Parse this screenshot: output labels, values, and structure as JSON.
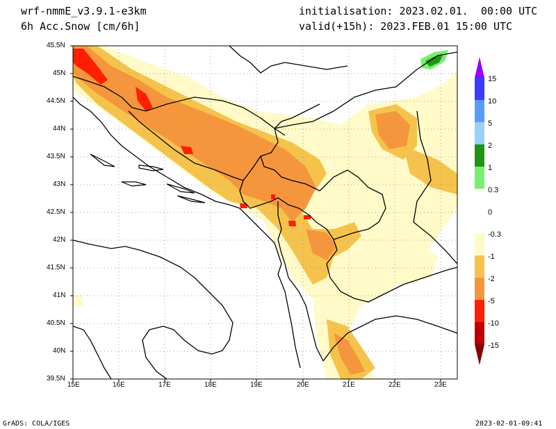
{
  "header": {
    "model": "wrf-nmmE_v3.9.1-e3km",
    "variable": "6h Acc.Snow [cm/6h]",
    "init": "initialisation: 2023.02.01.  00:00 UTC",
    "valid": "valid(+15h): 2023.FEB.01 15:00 UTC"
  },
  "footer": {
    "credit": "GrADS: COLA/IGES",
    "timestamp": "2023-02-01-09:41"
  },
  "axes": {
    "lon_labels": [
      "15E",
      "16E",
      "17E",
      "18E",
      "19E",
      "20E",
      "21E",
      "22E",
      "23E"
    ],
    "lat_labels": [
      "45.5N",
      "45N",
      "44.5N",
      "44N",
      "43.5N",
      "43N",
      "42.5N",
      "42N",
      "41.5N",
      "41N",
      "40.5N",
      "40N",
      "39.5N"
    ]
  },
  "legend": {
    "labels": [
      "15",
      "10",
      "5",
      "2",
      "1",
      "0.3",
      "0",
      "-0.3",
      "-1",
      "-2",
      "-5",
      "-10",
      "-15"
    ],
    "colors": [
      "#9600fe",
      "#3c3cff",
      "#5a9bff",
      "#96d2fa",
      "#1e9614",
      "#78f06e",
      "#ffffff",
      "#fffac8",
      "#ffe6a0",
      "#f5c34b",
      "#f5963c",
      "#ff1e00",
      "#be0000",
      "#820000"
    ]
  },
  "palette": {
    "light_yellow": "#fffac8",
    "yellow": "#f5c34b",
    "orange": "#f5963c",
    "red": "#ff1e00",
    "green": "#1e9614",
    "light_green": "#78f06e",
    "grid": "#a0a0a0",
    "border": "#000000"
  }
}
